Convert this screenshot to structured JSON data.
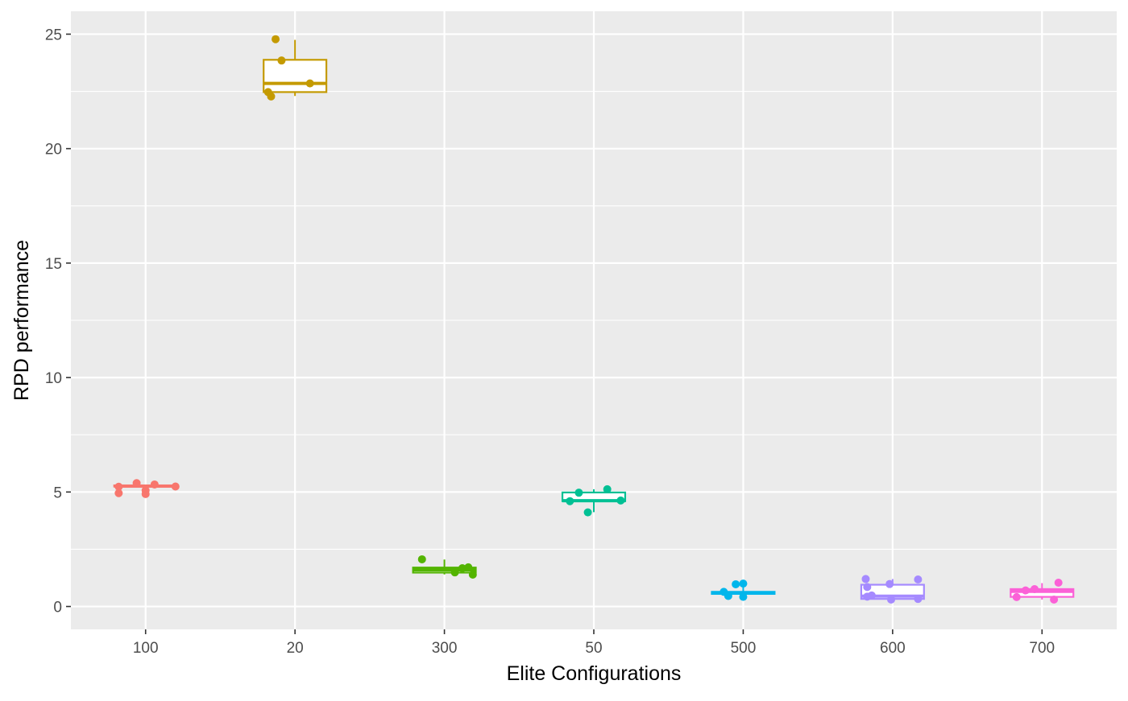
{
  "chart_data": {
    "type": "boxplot",
    "title": "",
    "xlabel": "Elite Configurations",
    "ylabel": "RPD performance",
    "ylim": [
      -1,
      26
    ],
    "y_ticks": [
      0,
      5,
      10,
      15,
      20,
      25
    ],
    "y_tick_labels": [
      "0",
      "5",
      "10",
      "15",
      "20",
      "25"
    ],
    "grid": true,
    "legend": "none",
    "background": "#ebebeb",
    "categories": [
      "100",
      "20",
      "300",
      "50",
      "500",
      "600",
      "700"
    ],
    "series": [
      {
        "category": "100",
        "color": "#F8766D",
        "box": {
          "min": 5.24,
          "q1": 5.24,
          "median": 5.26,
          "q3": 5.29,
          "max": 5.31
        },
        "points": [
          {
            "x": -0.18,
            "y": 5.23
          },
          {
            "x": -0.18,
            "y": 4.95
          },
          {
            "x": -0.06,
            "y": 5.39
          },
          {
            "x": 0.0,
            "y": 5.07
          },
          {
            "x": 0.0,
            "y": 4.91
          },
          {
            "x": 0.06,
            "y": 5.33
          },
          {
            "x": 0.2,
            "y": 5.24
          }
        ]
      },
      {
        "category": "20",
        "color": "#C49A00",
        "box": {
          "min": 22.3,
          "q1": 22.47,
          "median": 22.85,
          "q3": 23.88,
          "max": 24.75
        },
        "points": [
          {
            "x": -0.18,
            "y": 22.47
          },
          {
            "x": -0.16,
            "y": 22.28
          },
          {
            "x": -0.13,
            "y": 24.78
          },
          {
            "x": -0.09,
            "y": 23.85
          },
          {
            "x": 0.1,
            "y": 22.85
          }
        ]
      },
      {
        "category": "300",
        "color": "#53B400",
        "box": {
          "min": 1.4,
          "q1": 1.48,
          "median": 1.6,
          "q3": 1.7,
          "max": 2.05
        },
        "points": [
          {
            "x": -0.15,
            "y": 2.06
          },
          {
            "x": 0.07,
            "y": 1.49
          },
          {
            "x": 0.12,
            "y": 1.67
          },
          {
            "x": 0.16,
            "y": 1.71
          },
          {
            "x": 0.19,
            "y": 1.39
          }
        ]
      },
      {
        "category": "50",
        "color": "#00C094",
        "box": {
          "min": 4.12,
          "q1": 4.6,
          "median": 4.62,
          "q3": 4.98,
          "max": 5.12
        },
        "points": [
          {
            "x": -0.16,
            "y": 4.6
          },
          {
            "x": -0.1,
            "y": 4.97
          },
          {
            "x": -0.04,
            "y": 4.11
          },
          {
            "x": 0.09,
            "y": 5.12
          },
          {
            "x": 0.18,
            "y": 4.63
          }
        ]
      },
      {
        "category": "500",
        "color": "#00B6EB",
        "box": {
          "min": 0.45,
          "q1": 0.55,
          "median": 0.6,
          "q3": 0.64,
          "max": 1.0
        },
        "points": [
          {
            "x": -0.13,
            "y": 0.64
          },
          {
            "x": -0.1,
            "y": 0.46
          },
          {
            "x": -0.05,
            "y": 0.97
          },
          {
            "x": 0.0,
            "y": 1.0
          },
          {
            "x": 0.0,
            "y": 0.42
          }
        ]
      },
      {
        "category": "600",
        "color": "#A58AFF",
        "box": {
          "min": 0.28,
          "q1": 0.33,
          "median": 0.45,
          "q3": 0.95,
          "max": 1.2
        },
        "points": [
          {
            "x": -0.18,
            "y": 1.2
          },
          {
            "x": -0.17,
            "y": 0.85
          },
          {
            "x": -0.17,
            "y": 0.43
          },
          {
            "x": -0.14,
            "y": 0.48
          },
          {
            "x": -0.02,
            "y": 0.98
          },
          {
            "x": -0.01,
            "y": 0.3
          },
          {
            "x": 0.17,
            "y": 1.18
          },
          {
            "x": 0.17,
            "y": 0.33
          }
        ]
      },
      {
        "category": "700",
        "color": "#FB61D7",
        "box": {
          "min": 0.3,
          "q1": 0.42,
          "median": 0.66,
          "q3": 0.76,
          "max": 1.02
        },
        "points": [
          {
            "x": -0.17,
            "y": 0.41
          },
          {
            "x": -0.11,
            "y": 0.7
          },
          {
            "x": -0.05,
            "y": 0.76
          },
          {
            "x": 0.08,
            "y": 0.3
          },
          {
            "x": 0.11,
            "y": 1.04
          }
        ]
      }
    ]
  }
}
